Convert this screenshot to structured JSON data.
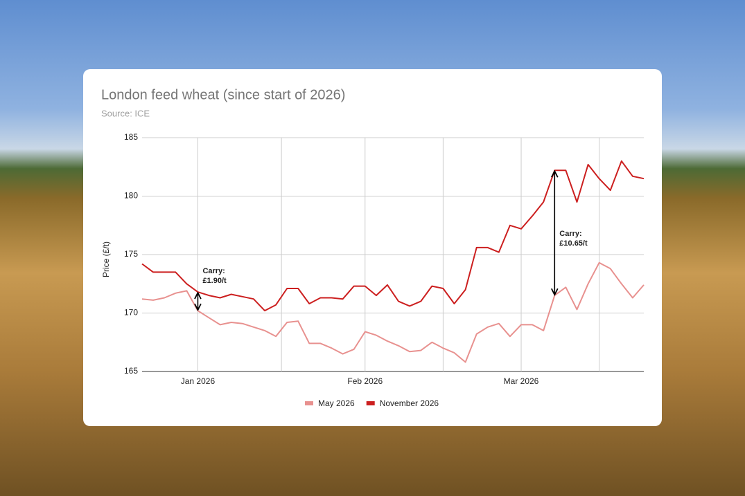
{
  "chart_data": {
    "type": "line",
    "title": "London feed wheat (since start of 2026)",
    "subtitle": "Source: ICE",
    "y_label": "Price (£/t)",
    "categories": [
      null,
      null,
      null,
      null,
      null,
      "Jan 2026",
      null,
      null,
      null,
      null,
      null,
      null,
      null,
      null,
      null,
      null,
      null,
      null,
      null,
      null,
      "Feb 2026",
      null,
      null,
      null,
      null,
      null,
      null,
      null,
      null,
      null,
      null,
      null,
      null,
      null,
      "Mar 2026",
      null,
      null,
      null,
      null,
      null,
      null,
      null,
      null,
      null,
      null,
      null
    ],
    "series": [
      {
        "name": "May 2026",
        "color": "#e8918f",
        "values": [
          171.2,
          171.1,
          171.3,
          171.7,
          171.9,
          170.2,
          169.6,
          169.0,
          169.2,
          169.1,
          168.8,
          168.5,
          168.0,
          169.2,
          169.3,
          167.4,
          167.4,
          167.0,
          166.5,
          166.9,
          168.4,
          168.1,
          167.6,
          167.2,
          166.7,
          166.8,
          167.5,
          167.0,
          166.6,
          165.8,
          168.2,
          168.8,
          169.1,
          168.0,
          169.0,
          169.0,
          168.5,
          171.5,
          172.2,
          170.3,
          172.5,
          174.3,
          173.8,
          172.5,
          171.3,
          172.4
        ]
      },
      {
        "name": "November 2026",
        "color": "#cc1f1f",
        "values": [
          174.2,
          173.5,
          173.5,
          173.5,
          172.5,
          171.8,
          171.5,
          171.3,
          171.6,
          171.4,
          171.2,
          170.2,
          170.7,
          172.1,
          172.1,
          170.8,
          171.3,
          171.3,
          171.2,
          172.3,
          172.3,
          171.5,
          172.4,
          171.0,
          170.6,
          171.0,
          172.3,
          172.1,
          170.8,
          172.0,
          175.6,
          175.6,
          175.2,
          177.5,
          177.2,
          178.3,
          179.5,
          182.2,
          182.2,
          179.5,
          182.7,
          181.5,
          180.5,
          183.0,
          181.7,
          181.5
        ]
      }
    ],
    "annotations": [
      {
        "lines": [
          "Carry:",
          "£1.90/t"
        ]
      },
      {
        "lines": [
          "Carry:",
          "£10.65/t"
        ]
      }
    ],
    "ylim": [
      165,
      185
    ],
    "yticks": [
      165,
      170,
      175,
      180,
      185
    ],
    "grid": true,
    "legend": "bottom"
  }
}
